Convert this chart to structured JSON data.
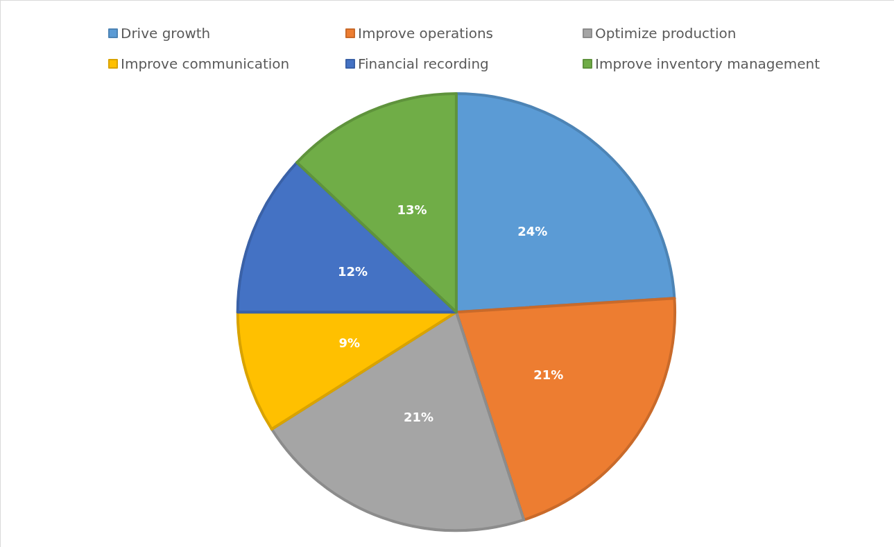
{
  "chart_data": {
    "type": "pie",
    "categories": [
      "Drive growth",
      "Improve operations",
      "Optimize production",
      "Improve communication",
      "Financial recording",
      "Improve inventory management"
    ],
    "values": [
      24,
      21,
      21,
      9,
      12,
      13
    ],
    "value_labels": [
      "24%",
      "21%",
      "21%",
      "9%",
      "12%",
      "13%"
    ],
    "colors": [
      "#5b9bd5",
      "#ed7d31",
      "#a5a5a5",
      "#ffc000",
      "#4472c4",
      "#70ad47"
    ],
    "legend": "top"
  }
}
